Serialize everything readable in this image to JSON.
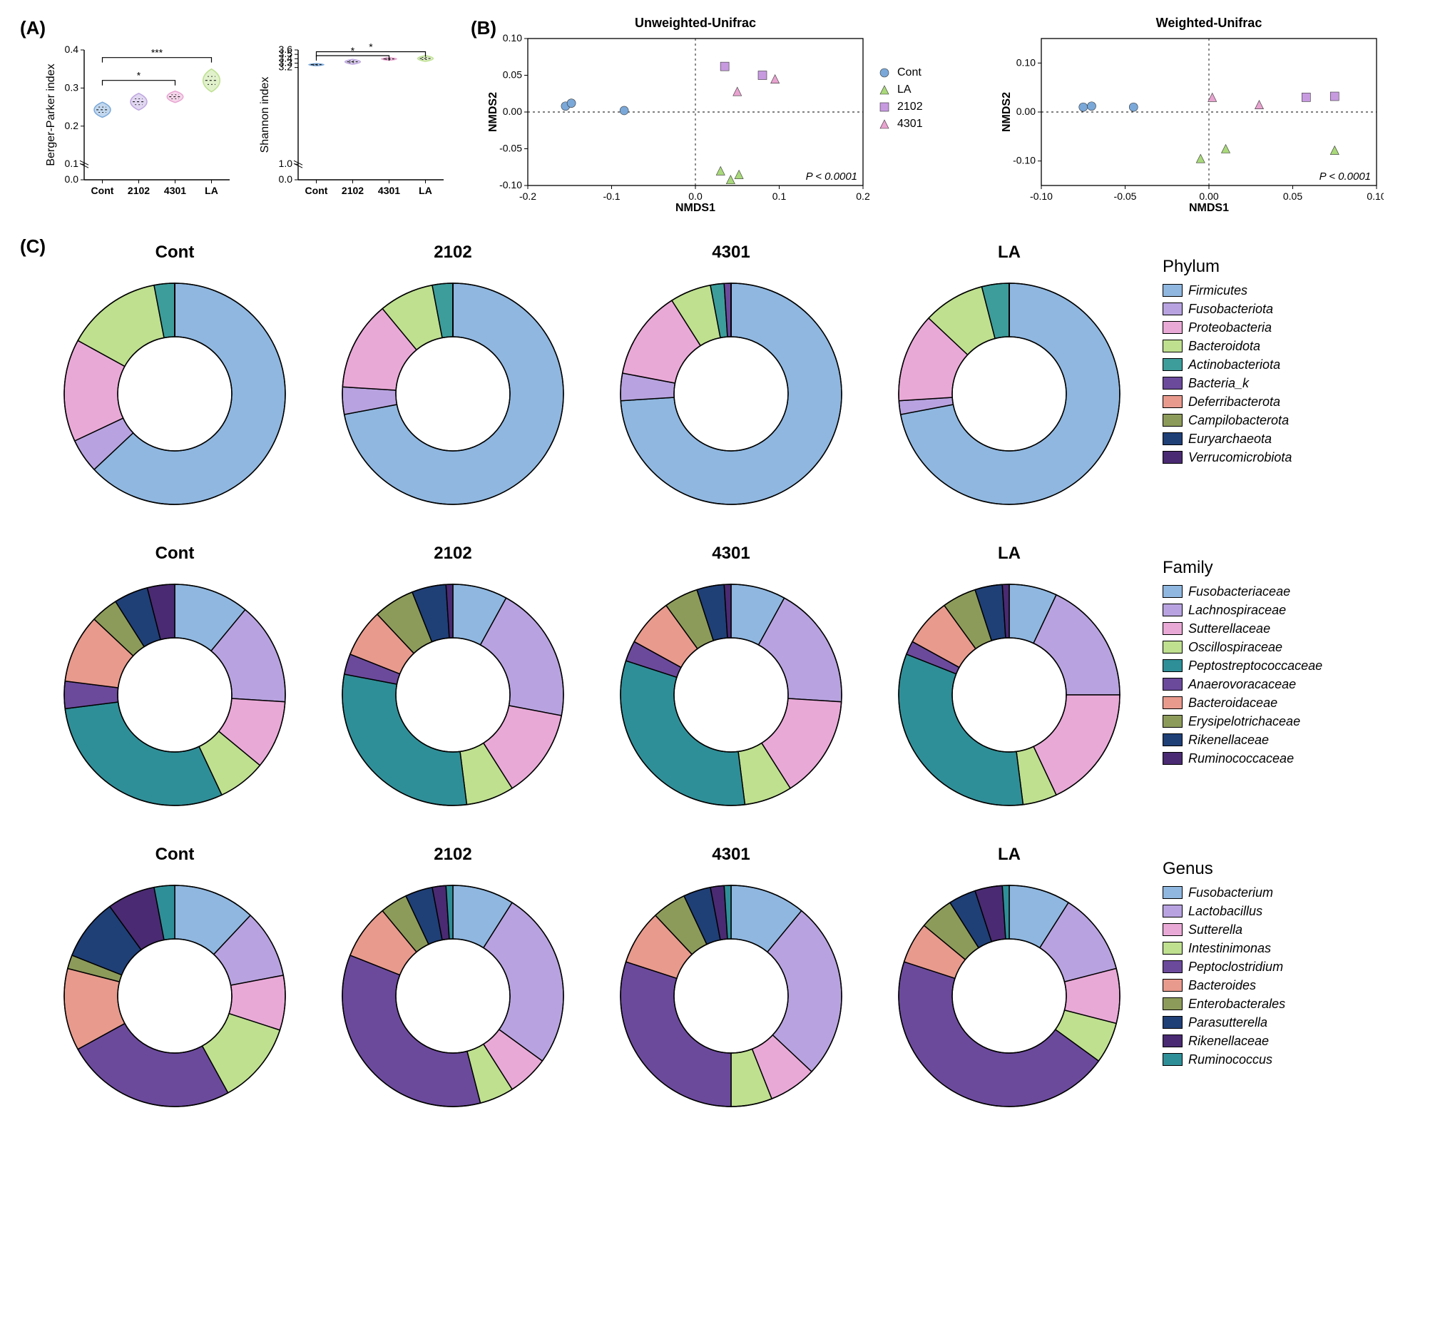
{
  "groups": [
    "Cont",
    "2102",
    "4301",
    "LA"
  ],
  "group_colors": {
    "Cont": "#7aa8d9",
    "2102": "#bda6e0",
    "4301": "#e8a3d0",
    "LA": "#bde08f"
  },
  "panelA": {
    "plots": [
      {
        "ylabel": "Berger-Parker index",
        "ylim": [
          0.0,
          0.4
        ],
        "yticks": [
          0.0,
          0.1,
          0.2,
          0.3,
          0.4
        ],
        "break_low": 0.1,
        "means": [
          0.243,
          0.264,
          0.277,
          0.32
        ],
        "widths": [
          0.024,
          0.024,
          0.018,
          0.032
        ],
        "heights": [
          0.04,
          0.044,
          0.03,
          0.06
        ],
        "sig": [
          {
            "from": 0,
            "to": 2,
            "y": 0.32,
            "label": "*"
          },
          {
            "from": 0,
            "to": 3,
            "y": 0.38,
            "label": "***"
          }
        ]
      },
      {
        "ylabel": "Shannon index",
        "ylim": [
          0.0,
          3.6
        ],
        "yticks": [
          0.0,
          1.0,
          3.2,
          3.3,
          3.4,
          3.5,
          3.6
        ],
        "break_low": 1.0,
        "means": [
          3.265,
          3.33,
          3.395,
          3.405
        ],
        "widths": [
          0.022,
          0.06,
          0.03,
          0.06
        ],
        "heights": [
          0.05,
          0.11,
          0.06,
          0.13
        ],
        "sig": [
          {
            "from": 0,
            "to": 2,
            "y": 3.47,
            "label": "*"
          },
          {
            "from": 0,
            "to": 3,
            "y": 3.56,
            "label": "*"
          }
        ]
      }
    ]
  },
  "panelB": {
    "shapes": {
      "Cont": "circle",
      "LA": "triangle",
      "2102": "square",
      "4301": "triangle"
    },
    "shape_colors": {
      "Cont": "#7aa8d9",
      "LA": "#a9d97a",
      "2102": "#c79ae0",
      "4301": "#e8a3d0"
    },
    "plots": [
      {
        "title": "Unweighted-Unifrac",
        "xlabel": "NMDS1",
        "ylabel": "NMDS2",
        "xlim": [
          -0.2,
          0.2
        ],
        "ylim": [
          -0.1,
          0.1
        ],
        "xticks": [
          -0.2,
          -0.1,
          0.0,
          0.1,
          0.2
        ],
        "yticks": [
          -0.1,
          -0.05,
          0.0,
          0.05,
          0.1
        ],
        "pvalue": "P < 0.0001",
        "points": [
          {
            "g": "Cont",
            "x": -0.155,
            "y": 0.008
          },
          {
            "g": "Cont",
            "x": -0.148,
            "y": 0.012
          },
          {
            "g": "Cont",
            "x": -0.085,
            "y": 0.002
          },
          {
            "g": "LA",
            "x": 0.03,
            "y": -0.08
          },
          {
            "g": "LA",
            "x": 0.042,
            "y": -0.092
          },
          {
            "g": "LA",
            "x": 0.052,
            "y": -0.085
          },
          {
            "g": "2102",
            "x": 0.035,
            "y": 0.062
          },
          {
            "g": "2102",
            "x": 0.08,
            "y": 0.05
          },
          {
            "g": "4301",
            "x": 0.05,
            "y": 0.028
          },
          {
            "g": "4301",
            "x": 0.095,
            "y": 0.045
          }
        ]
      },
      {
        "title": "Weighted-Unifrac",
        "xlabel": "NMDS1",
        "ylabel": "NMDS2",
        "xlim": [
          -0.1,
          0.1
        ],
        "ylim": [
          -0.15,
          0.15
        ],
        "xticks": [
          -0.1,
          -0.05,
          0.0,
          0.05,
          0.1
        ],
        "yticks": [
          -0.1,
          0.0,
          0.1
        ],
        "pvalue": "P < 0.0001",
        "points": [
          {
            "g": "Cont",
            "x": -0.075,
            "y": 0.01
          },
          {
            "g": "Cont",
            "x": -0.07,
            "y": 0.012
          },
          {
            "g": "Cont",
            "x": -0.045,
            "y": 0.01
          },
          {
            "g": "LA",
            "x": -0.005,
            "y": -0.095
          },
          {
            "g": "LA",
            "x": 0.01,
            "y": -0.075
          },
          {
            "g": "LA",
            "x": 0.075,
            "y": -0.078
          },
          {
            "g": "2102",
            "x": 0.058,
            "y": 0.03
          },
          {
            "g": "2102",
            "x": 0.075,
            "y": 0.032
          },
          {
            "g": "4301",
            "x": 0.002,
            "y": 0.03
          },
          {
            "g": "4301",
            "x": 0.03,
            "y": 0.015
          }
        ]
      }
    ]
  },
  "panelC": {
    "levels": [
      {
        "level": "Phylum",
        "taxa": [
          "Firmicutes",
          "Fusobacteriota",
          "Proteobacteria",
          "Bacteroidota",
          "Actinobacteriota",
          "Bacteria_k",
          "Deferribacterota",
          "Campilobacterota",
          "Euryarchaeota",
          "Verrucomicrobiota"
        ],
        "colors": [
          "#8fb7e0",
          "#b8a3e0",
          "#e9a9d7",
          "#bfe08f",
          "#3c9d9b",
          "#6b4a9c",
          "#e89a8d",
          "#8d9b5a",
          "#1f3f77",
          "#4a2a72"
        ],
        "data": {
          "Cont": [
            63,
            5,
            15,
            14,
            3,
            0,
            0,
            0,
            0,
            0
          ],
          "2102": [
            72,
            4,
            13,
            8,
            3,
            0,
            0,
            0,
            0,
            0
          ],
          "4301": [
            74,
            4,
            13,
            6,
            2,
            1,
            0,
            0,
            0,
            0
          ],
          "LA": [
            72,
            2,
            13,
            9,
            4,
            0,
            0,
            0,
            0,
            0
          ]
        }
      },
      {
        "level": "Family",
        "taxa": [
          "Fusobacteriaceae",
          "Lachnospiraceae",
          "Sutterellaceae",
          "Oscillospiraceae",
          "Peptostreptococcaceae",
          "Anaerovoracaceae",
          "Bacteroidaceae",
          "Erysipelotrichaceae",
          "Rikenellaceae",
          "Ruminococcaceae"
        ],
        "colors": [
          "#8fb7e0",
          "#b8a3e0",
          "#e9a9d7",
          "#bfe08f",
          "#2f8f98",
          "#6b4a9c",
          "#e89a8d",
          "#8d9b5a",
          "#1f3f77",
          "#4a2a72"
        ],
        "data": {
          "Cont": [
            11,
            15,
            10,
            7,
            30,
            4,
            10,
            4,
            5,
            4
          ],
          "2102": [
            8,
            20,
            13,
            7,
            30,
            3,
            7,
            6,
            5,
            1
          ],
          "4301": [
            8,
            18,
            15,
            7,
            32,
            3,
            7,
            5,
            4,
            1
          ],
          "LA": [
            7,
            18,
            18,
            5,
            33,
            2,
            7,
            5,
            4,
            1
          ]
        }
      },
      {
        "level": "Genus",
        "taxa": [
          "Fusobacterium",
          "Lactobacillus",
          "Sutterella",
          "Intestinimonas",
          "Peptoclostridium",
          "Bacteroides",
          "Enterobacterales",
          "Parasutterella",
          "Rikenellaceae",
          "Ruminococcus"
        ],
        "colors": [
          "#8fb7e0",
          "#b8a3e0",
          "#e9a9d7",
          "#bfe08f",
          "#6b4a9c",
          "#e89a8d",
          "#8d9b5a",
          "#1f3f77",
          "#4a2a72",
          "#2f8f98"
        ],
        "data": {
          "Cont": [
            12,
            10,
            8,
            12,
            25,
            12,
            2,
            9,
            7,
            3
          ],
          "2102": [
            9,
            26,
            6,
            5,
            35,
            8,
            4,
            4,
            2,
            1
          ],
          "4301": [
            11,
            26,
            7,
            6,
            30,
            8,
            5,
            4,
            2,
            1
          ],
          "LA": [
            9,
            12,
            8,
            6,
            45,
            6,
            5,
            4,
            4,
            1
          ]
        }
      }
    ],
    "donut": {
      "outer_r": 155,
      "inner_r": 80,
      "stroke": "#000000",
      "stroke_width": 1.5
    }
  },
  "labels": {
    "A": "(A)",
    "B": "(B)",
    "C": "(C)"
  }
}
